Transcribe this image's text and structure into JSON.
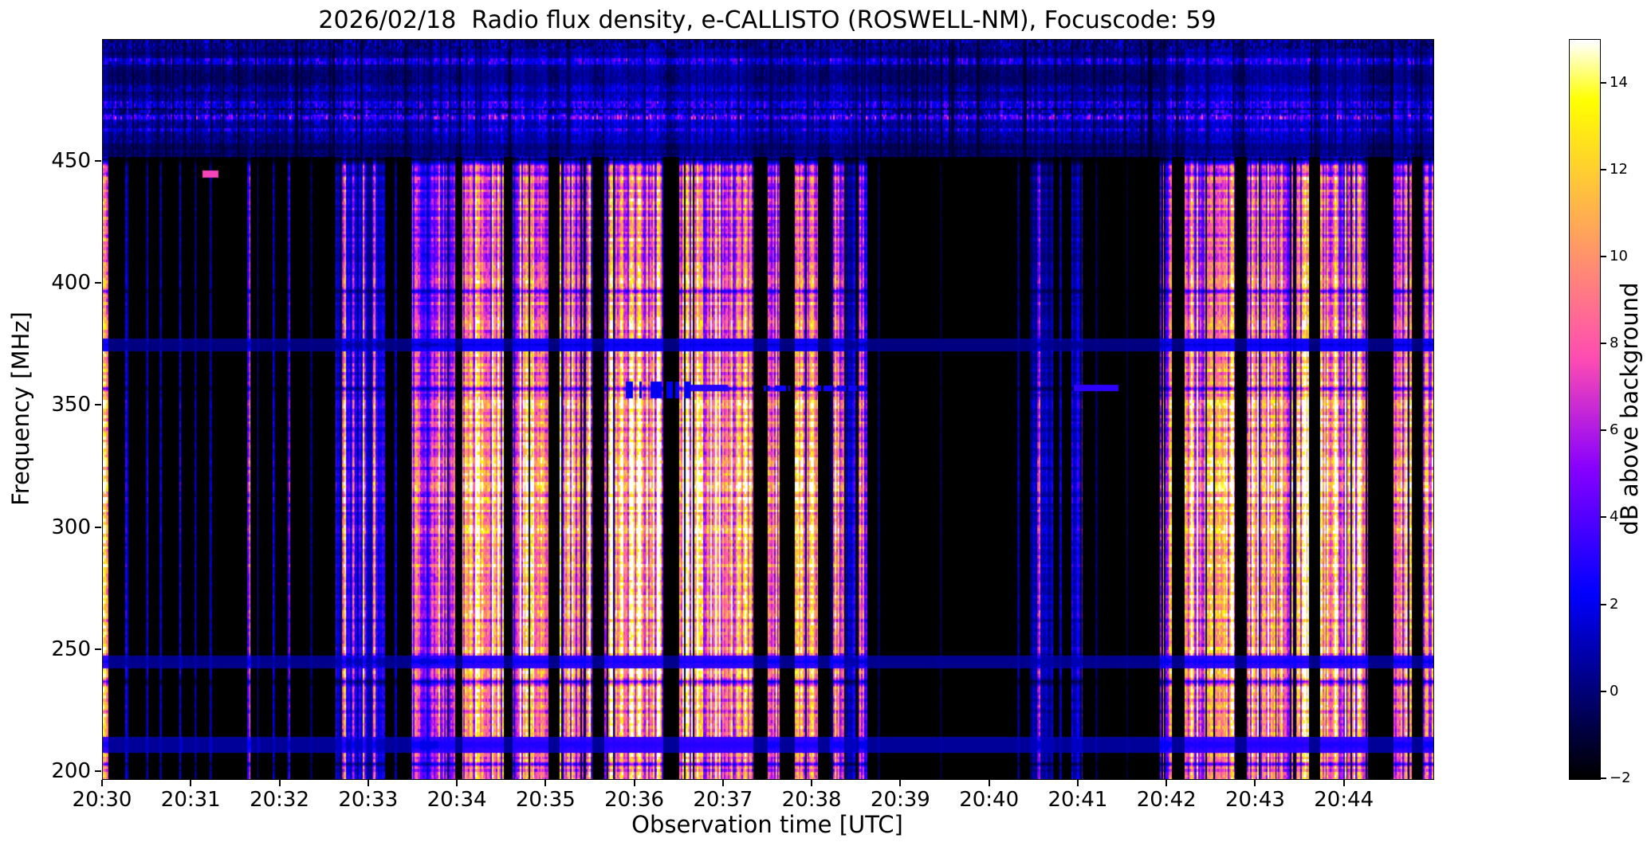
{
  "chart_data": {
    "type": "heatmap",
    "title": "2026/02/18  Radio flux density, e-CALLISTO (ROSWELL-NM), Focuscode: 59",
    "xlabel": "Observation time [UTC]",
    "ylabel": "Frequency [MHz]",
    "x_tick_labels": [
      "20:30",
      "20:31",
      "20:32",
      "20:33",
      "20:34",
      "20:35",
      "20:36",
      "20:37",
      "20:38",
      "20:39",
      "20:40",
      "20:41",
      "20:42",
      "20:43",
      "20:44"
    ],
    "x_range_minutes": [
      0,
      15
    ],
    "y_tick_values": [
      200,
      250,
      300,
      350,
      400,
      450
    ],
    "freq_range_mhz": [
      197,
      500
    ],
    "colorbar": {
      "label": "dB above background",
      "ticks": [
        -2,
        0,
        2,
        4,
        6,
        8,
        10,
        12,
        14
      ],
      "vmin": -2,
      "vmax": 15,
      "colormap": "gnuplot2"
    },
    "rfi_top_band_mhz": {
      "edge": 452,
      "bands": [
        {
          "center": 471,
          "width": 10,
          "amp": 2.4
        },
        {
          "center": 491,
          "width": 5,
          "amp": 1.5
        }
      ],
      "dark_row": 470.5
    },
    "emission_segments": [
      {
        "t0": 0.0,
        "t1": 0.06,
        "amp": 0.85
      },
      {
        "t0": 2.62,
        "t1": 3.18,
        "amp": 0.3
      },
      {
        "t0": 3.48,
        "t1": 3.58,
        "amp": 0.75
      },
      {
        "t0": 3.58,
        "t1": 3.78,
        "amp": 0.55
      },
      {
        "t0": 3.78,
        "t1": 3.97,
        "amp": 0.88
      },
      {
        "t0": 4.05,
        "t1": 4.52,
        "amp": 0.95
      },
      {
        "t0": 4.62,
        "t1": 5.02,
        "amp": 0.97
      },
      {
        "t0": 5.15,
        "t1": 5.52,
        "amp": 0.92
      },
      {
        "t0": 5.65,
        "t1": 6.32,
        "amp": 1.0
      },
      {
        "t0": 6.5,
        "t1": 7.33,
        "amp": 1.0
      },
      {
        "t0": 7.5,
        "t1": 7.63,
        "amp": 0.8
      },
      {
        "t0": 7.8,
        "t1": 8.06,
        "amp": 0.88
      },
      {
        "t0": 8.2,
        "t1": 8.36,
        "amp": 0.8
      },
      {
        "t0": 8.38,
        "t1": 8.5,
        "amp": 0.28
      },
      {
        "t0": 8.52,
        "t1": 8.62,
        "amp": 0.6
      },
      {
        "t0": 10.45,
        "t1": 10.72,
        "amp": 0.22
      },
      {
        "t0": 10.92,
        "t1": 11.05,
        "amp": 0.3
      },
      {
        "t0": 11.92,
        "t1": 12.05,
        "amp": 0.7
      },
      {
        "t0": 12.2,
        "t1": 12.76,
        "amp": 0.92
      },
      {
        "t0": 12.9,
        "t1": 13.6,
        "amp": 0.97
      },
      {
        "t0": 13.72,
        "t1": 14.26,
        "amp": 0.92
      },
      {
        "t0": 14.55,
        "t1": 14.76,
        "amp": 0.82
      },
      {
        "t0": 14.88,
        "t1": 15.0,
        "amp": 0.75
      }
    ],
    "thin_vertical_lines": [
      {
        "t": 0.27,
        "w": 0.015,
        "a": 0.25
      },
      {
        "t": 0.5,
        "w": 0.015,
        "a": 0.3
      },
      {
        "t": 0.65,
        "w": 0.012,
        "a": 0.2
      },
      {
        "t": 0.88,
        "w": 0.015,
        "a": 0.35
      },
      {
        "t": 1.05,
        "w": 0.012,
        "a": 0.2
      },
      {
        "t": 1.22,
        "w": 0.015,
        "a": 0.35
      },
      {
        "t": 1.65,
        "w": 0.02,
        "a": 0.7
      },
      {
        "t": 1.76,
        "w": 0.012,
        "a": 0.3
      },
      {
        "t": 1.93,
        "w": 0.012,
        "a": 0.25
      },
      {
        "t": 2.1,
        "w": 0.015,
        "a": 0.4
      },
      {
        "t": 2.35,
        "w": 0.012,
        "a": 0.15
      },
      {
        "t": 2.72,
        "w": 0.02,
        "a": 0.85
      },
      {
        "t": 2.82,
        "w": 0.018,
        "a": 0.7
      },
      {
        "t": 2.95,
        "w": 0.02,
        "a": 0.9
      },
      {
        "t": 3.06,
        "w": 0.018,
        "a": 0.75
      },
      {
        "t": 3.3,
        "w": 0.012,
        "a": 0.2
      },
      {
        "t": 8.75,
        "w": 0.012,
        "a": 0.1
      },
      {
        "t": 9.45,
        "w": 0.012,
        "a": 0.08
      },
      {
        "t": 10.32,
        "w": 0.015,
        "a": 0.2
      },
      {
        "t": 10.55,
        "w": 0.018,
        "a": 0.5
      },
      {
        "t": 10.8,
        "w": 0.012,
        "a": 0.18
      },
      {
        "t": 11.2,
        "w": 0.012,
        "a": 0.15
      },
      {
        "t": 11.55,
        "w": 0.012,
        "a": 0.12
      }
    ],
    "horizontal_dips": [
      {
        "f": 451,
        "w": 3.0,
        "d": 0.9
      },
      {
        "f": 445,
        "w": 1.5,
        "d": 0.35
      },
      {
        "f": 420,
        "w": 1.5,
        "d": 0.3
      },
      {
        "f": 397,
        "w": 2.0,
        "d": 0.5
      },
      {
        "f": 375,
        "w": 2.5,
        "d": 0.8
      },
      {
        "f": 357,
        "w": 2.0,
        "d": 0.6
      },
      {
        "f": 340,
        "w": 1.2,
        "d": 0.2
      },
      {
        "f": 306,
        "w": 1.2,
        "d": 0.2
      },
      {
        "f": 262,
        "w": 1.2,
        "d": 0.2
      },
      {
        "f": 245,
        "w": 2.5,
        "d": 0.8
      },
      {
        "f": 237,
        "w": 2.0,
        "d": 0.5
      },
      {
        "f": 225,
        "w": 1.2,
        "d": 0.2
      },
      {
        "f": 211,
        "w": 3.0,
        "d": 0.85
      },
      {
        "f": 203,
        "w": 1.5,
        "d": 0.4
      }
    ],
    "horizontal_blue_bands": [
      {
        "f": 211,
        "w": 3.2,
        "base": 0.55,
        "gain": 2.5,
        "cap": 3.4
      },
      {
        "f": 245,
        "w": 2.6,
        "base": 0.35,
        "gain": 2.3,
        "cap": 3.2
      },
      {
        "f": 375,
        "w": 2.6,
        "base": 0.15,
        "gain": 1.6,
        "cap": 2.6
      }
    ],
    "features": [
      {
        "type": "solid",
        "t0": 1.12,
        "t1": 1.3,
        "f0": 443.5,
        "f1": 446.5,
        "value": 7.5
      },
      {
        "type": "dashed",
        "t0": 5.9,
        "t1": 6.62,
        "f0": 353.0,
        "f1": 360.0,
        "value": 2.0
      },
      {
        "type": "solid",
        "t0": 6.62,
        "t1": 7.05,
        "f0": 356.0,
        "f1": 358.5,
        "value": 3.0
      },
      {
        "type": "dashed",
        "t0": 7.4,
        "t1": 8.6,
        "f0": 356.0,
        "f1": 358.2,
        "value": 2.6
      },
      {
        "type": "solid",
        "t0": 10.95,
        "t1": 11.45,
        "f0": 356.0,
        "f1": 358.5,
        "value": 3.2
      }
    ]
  }
}
